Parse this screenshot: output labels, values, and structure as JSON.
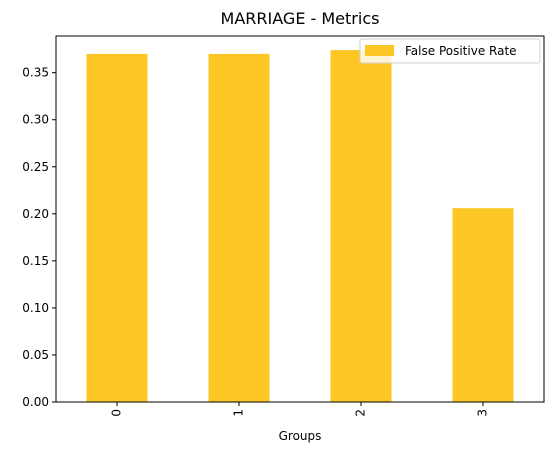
{
  "chart_data": {
    "type": "bar",
    "title": "MARRIAGE - Metrics",
    "xlabel": "Groups",
    "ylabel": "",
    "categories": [
      "0",
      "1",
      "2",
      "3"
    ],
    "series": [
      {
        "name": "False Positive Rate",
        "values": [
          0.37,
          0.37,
          0.374,
          0.206
        ],
        "color": "#fcc624"
      }
    ],
    "ylim": [
      0,
      0.389
    ],
    "yticks": [
      "0.00",
      "0.05",
      "0.10",
      "0.15",
      "0.20",
      "0.25",
      "0.30",
      "0.35"
    ],
    "grid": false,
    "legend_position": "top-right"
  }
}
